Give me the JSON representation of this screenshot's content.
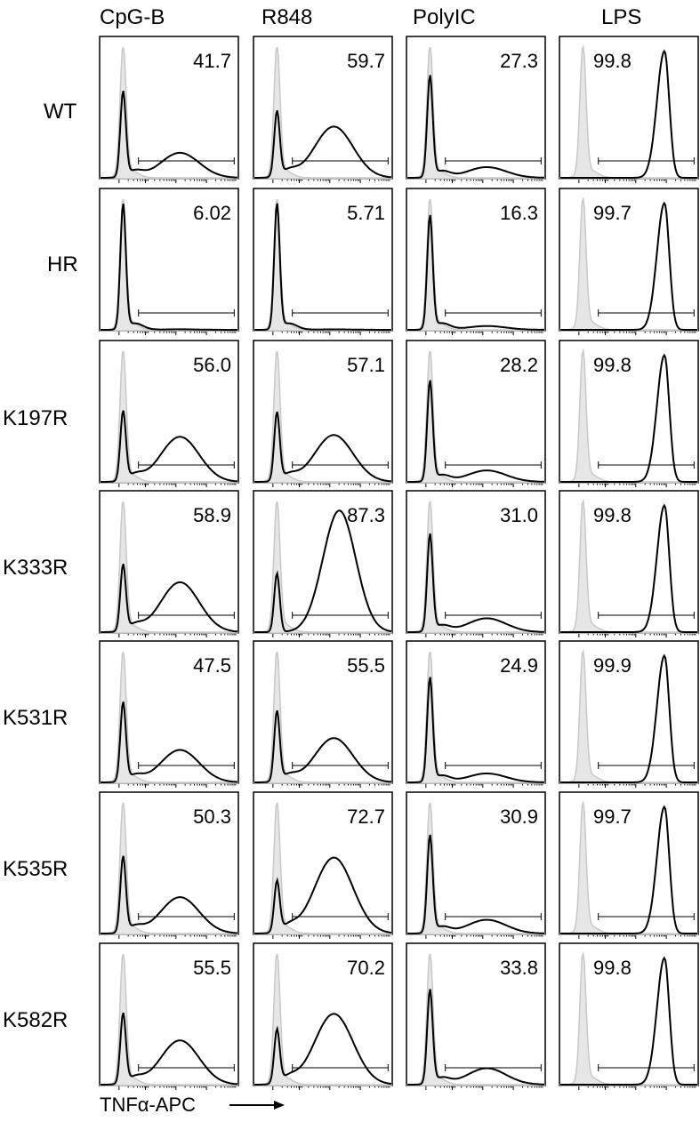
{
  "chart_data": {
    "type": "histogram-grid",
    "columns": [
      "CpG-B",
      "R848",
      "PolyIC",
      "LPS"
    ],
    "rows": [
      "WT",
      "HR",
      "K197R",
      "K333R",
      "K531R",
      "K535R",
      "K582R"
    ],
    "xlabel": "TNFα-APC",
    "x_scale": "log",
    "percentages": [
      [
        "41.7",
        "59.7",
        "27.3",
        "99.8"
      ],
      [
        "6.02",
        "5.71",
        "16.3",
        "99.7"
      ],
      [
        "56.0",
        "57.1",
        "28.2",
        "99.8"
      ],
      [
        "58.9",
        "87.3",
        "31.0",
        "99.8"
      ],
      [
        "47.5",
        "55.5",
        "24.9",
        "99.9"
      ],
      [
        "50.3",
        "72.7",
        "30.9",
        "99.7"
      ],
      [
        "55.5",
        "70.2",
        "33.8",
        "99.8"
      ]
    ],
    "colors": {
      "stimulated": "#000000",
      "control": "#c8c8c8",
      "control_fill": "#e6e6e6"
    }
  }
}
